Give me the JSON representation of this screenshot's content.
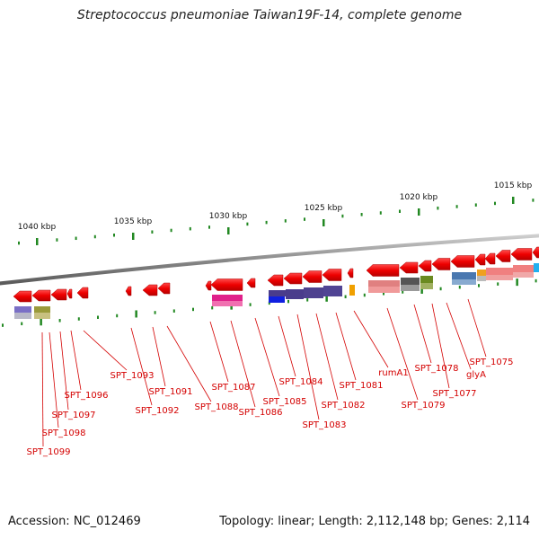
{
  "title": "Streptococcus pneumoniae Taiwan19F-14, complete genome",
  "footer": {
    "accession": "Accession: NC_012469",
    "topology": "Topology: linear; Length: 2,112,148 bp; Genes: 2,114"
  },
  "scale_ticks": [
    {
      "label": "1040 kbp",
      "kbp": 1040
    },
    {
      "label": "1035 kbp",
      "kbp": 1035
    },
    {
      "label": "1030 kbp",
      "kbp": 1030
    },
    {
      "label": "1025 kbp",
      "kbp": 1025
    },
    {
      "label": "1020 kbp",
      "kbp": 1020
    },
    {
      "label": "1015 kbp",
      "kbp": 1015
    }
  ],
  "colors": {
    "gene_arrow": "#ee0000",
    "label": "#d40000",
    "tick": "#228822",
    "backbone": "#888888"
  },
  "genes": [
    {
      "label": "SPT_1099"
    },
    {
      "label": "SPT_1098"
    },
    {
      "label": "SPT_1097"
    },
    {
      "label": "SPT_1096"
    },
    {
      "label": "SPT_1093"
    },
    {
      "label": "SPT_1092"
    },
    {
      "label": "SPT_1091"
    },
    {
      "label": "SPT_1088"
    },
    {
      "label": "SPT_1087"
    },
    {
      "label": "SPT_1086"
    },
    {
      "label": "SPT_1085"
    },
    {
      "label": "SPT_1084"
    },
    {
      "label": "SPT_1083"
    },
    {
      "label": "SPT_1082"
    },
    {
      "label": "SPT_1081"
    },
    {
      "label": "rumA1"
    },
    {
      "label": "SPT_1079"
    },
    {
      "label": "SPT_1078"
    },
    {
      "label": "SPT_1077"
    },
    {
      "label": "glyA"
    },
    {
      "label": "SPT_1075"
    }
  ]
}
